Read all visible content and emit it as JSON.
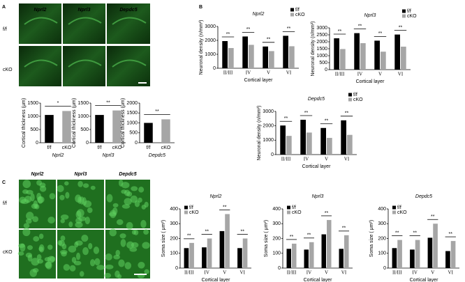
{
  "panels": [
    {
      "letter": "A",
      "columns": [
        "Nprl2",
        "Nprl3",
        "Depdc5"
      ],
      "rows": [
        "f/f",
        "cKO"
      ]
    },
    {
      "letter": "B"
    },
    {
      "letter": "C",
      "columns": [
        "Nprl2",
        "Nprl3",
        "Depdc5"
      ],
      "rows": [
        "f/f",
        "cKO"
      ]
    }
  ],
  "chart_data": [
    {
      "type": "bar",
      "xlabel": "Nprl2",
      "ylabel": "Cortical thickness (μm)",
      "categories": [
        "f/f",
        "cKO"
      ],
      "values": [
        1050,
        1200
      ],
      "colors": [
        "#000000",
        "#a6a6a6"
      ],
      "ylim": [
        0,
        1500
      ],
      "yticks": [
        0,
        500,
        1000,
        1500
      ],
      "annotation": "*"
    },
    {
      "type": "bar",
      "xlabel": "Nprl3",
      "ylabel": "Cortical thickness (μm)",
      "categories": [
        "f/f",
        "cKO"
      ],
      "values": [
        1050,
        1220
      ],
      "colors": [
        "#000000",
        "#a6a6a6"
      ],
      "ylim": [
        0,
        1500
      ],
      "yticks": [
        0,
        500,
        1000,
        1500
      ],
      "annotation": "**"
    },
    {
      "type": "bar",
      "xlabel": "Depdc5",
      "ylabel": "Cortical thickness (μm)",
      "categories": [
        "f/f",
        "cKO"
      ],
      "values": [
        1000,
        1180
      ],
      "colors": [
        "#000000",
        "#a6a6a6"
      ],
      "ylim": [
        0,
        2000
      ],
      "yticks": [
        0,
        500,
        1000,
        1500,
        2000
      ],
      "annotation": "**"
    },
    {
      "type": "grouped_bar",
      "title": "Nprl2",
      "xlabel": "Cortical layer",
      "ylabel": "Neuronal density (n/mm²)",
      "categories": [
        "II/III",
        "IV",
        "V",
        "VI"
      ],
      "series": [
        {
          "name": "f/f",
          "color": "#000000",
          "values": [
            1950,
            2280,
            1560,
            2330
          ]
        },
        {
          "name": "cKO",
          "color": "#a6a6a6",
          "values": [
            1450,
            1680,
            1230,
            1580
          ]
        }
      ],
      "ylim": [
        0,
        3000
      ],
      "yticks": [
        0,
        1000,
        2000,
        3000
      ],
      "annotations": [
        "**",
        "**",
        "**",
        "**"
      ],
      "legend": "outside right"
    },
    {
      "type": "grouped_bar",
      "title": "Nprl3",
      "xlabel": "Cortical layer",
      "ylabel": "Neuronal density (n/mm²)",
      "categories": [
        "II/III",
        "IV",
        "V",
        "VI"
      ],
      "series": [
        {
          "name": "f/f",
          "color": "#000000",
          "values": [
            2250,
            2620,
            2080,
            2520
          ]
        },
        {
          "name": "cKO",
          "color": "#a6a6a6",
          "values": [
            1480,
            1900,
            1290,
            1650
          ]
        }
      ],
      "ylim": [
        0,
        3000
      ],
      "yticks": [
        0,
        500,
        1000,
        1500,
        2000,
        2500,
        3000
      ],
      "annotations": [
        "**",
        "**",
        "**",
        "**"
      ],
      "legend": "outside right"
    },
    {
      "type": "grouped_bar",
      "title": "Depdc5",
      "xlabel": "Cortical layer",
      "ylabel": "Neuronal density (n/mm²)",
      "categories": [
        "II/III",
        "IV",
        "V",
        "VI"
      ],
      "series": [
        {
          "name": "f/f",
          "color": "#000000",
          "values": [
            2020,
            2420,
            1850,
            2380
          ]
        },
        {
          "name": "cKO",
          "color": "#a6a6a6",
          "values": [
            1300,
            1530,
            1160,
            1370
          ]
        }
      ],
      "ylim": [
        0,
        3000
      ],
      "yticks": [
        0,
        1000,
        2000,
        3000
      ],
      "annotations": [
        "**",
        "**",
        "**",
        "**"
      ],
      "legend": "outside right"
    },
    {
      "type": "grouped_bar",
      "title": "Nprl2",
      "xlabel": "Cortical layer",
      "ylabel": "Soma size ( μm²)",
      "categories": [
        "II/III",
        "IV",
        "V",
        "VI"
      ],
      "series": [
        {
          "name": "f/f",
          "color": "#000000",
          "values": [
            135,
            140,
            250,
            135
          ]
        },
        {
          "name": "cKO",
          "color": "#a6a6a6",
          "values": [
            170,
            200,
            365,
            200
          ]
        }
      ],
      "ylim": [
        0,
        400
      ],
      "yticks": [
        0,
        100,
        200,
        300,
        400
      ],
      "annotations": [
        "**",
        "**",
        "**",
        "**"
      ],
      "legend": "upper left"
    },
    {
      "type": "grouped_bar",
      "title": "Nprl3",
      "xlabel": "Cortical layer",
      "ylabel": "Soma size ( μm²)",
      "categories": [
        "II/III",
        "IV",
        "V",
        "VI"
      ],
      "series": [
        {
          "name": "f/f",
          "color": "#000000",
          "values": [
            130,
            125,
            228,
            130
          ]
        },
        {
          "name": "cKO",
          "color": "#a6a6a6",
          "values": [
            165,
            175,
            325,
            222
          ]
        }
      ],
      "ylim": [
        0,
        400
      ],
      "yticks": [
        0,
        100,
        200,
        300,
        400
      ],
      "annotations": [
        "**",
        "**",
        "**",
        "**"
      ],
      "legend": "upper left"
    },
    {
      "type": "grouped_bar",
      "title": "Depdc5",
      "xlabel": "Cortical layer",
      "ylabel": "Soma size ( μm²)",
      "categories": [
        "II/III",
        "IV",
        "V",
        "VI"
      ],
      "series": [
        {
          "name": "f/f",
          "color": "#000000",
          "values": [
            135,
            125,
            205,
            115
          ]
        },
        {
          "name": "cKO",
          "color": "#a6a6a6",
          "values": [
            190,
            190,
            300,
            183
          ]
        }
      ],
      "ylim": [
        0,
        400
      ],
      "yticks": [
        0,
        100,
        200,
        300,
        400
      ],
      "annotations": [
        "**",
        "**",
        "**",
        "**"
      ],
      "legend": "upper left"
    }
  ]
}
